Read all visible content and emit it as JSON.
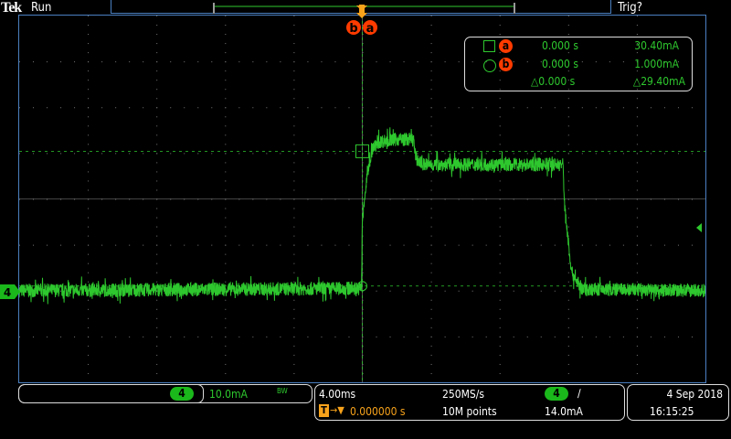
{
  "header": {
    "brand": "Tek",
    "acq_state": "Run",
    "trigger_status": "Trig?"
  },
  "colors": {
    "channel4": "#2ec82e",
    "trigger": "#f7a21b",
    "cursor_marker": "#ff3b00",
    "frame": "#4a7fc0"
  },
  "cursors": {
    "a": {
      "label": "a",
      "shape": "square",
      "time": "0.000 s",
      "value": "30.40mA"
    },
    "b": {
      "label": "b",
      "shape": "circle",
      "time": "0.000 s",
      "value": "1.000mA"
    },
    "delta": {
      "time": "△0.000 s",
      "value": "△29.40mA"
    }
  },
  "channel": {
    "number": "4",
    "scale": "10.0mA",
    "bw_limit": "BW",
    "marker": "4"
  },
  "horizontal": {
    "scale": "4.00ms",
    "sample_rate": "250MS/s",
    "trigger_position": "0.000000 s",
    "record_length": "10M points"
  },
  "trigger": {
    "source": "4",
    "slope": "rising",
    "slope_glyph": "∕",
    "level": "14.0mA"
  },
  "datetime": {
    "date": "4 Sep  2018",
    "time": "16:15:25"
  },
  "chart_data": {
    "type": "line",
    "x_unit": "ms",
    "y_unit": "mA",
    "x_per_div": 4,
    "y_per_div": 10,
    "xlim": [
      -20,
      20
    ],
    "ylim": [
      -20,
      60
    ],
    "grid": true,
    "series": [
      {
        "x": [
          -20,
          -0.05,
          0.0,
          0.3,
          0.6,
          1.0,
          2.0,
          3.0,
          3.1,
          3.5,
          7,
          11.7,
          11.8,
          12.2,
          12.8,
          20
        ],
        "y": [
          0,
          0.5,
          15,
          26,
          31,
          32.5,
          33,
          33,
          29,
          27.5,
          27.5,
          27.5,
          18,
          4,
          0.3,
          0
        ]
      }
    ],
    "noise_pp_mA": 3
  }
}
